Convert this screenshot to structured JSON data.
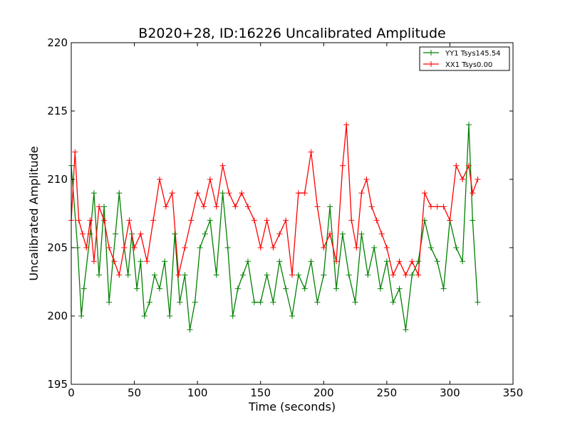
{
  "chart_data": {
    "type": "line",
    "title": "B2020+28, ID:16226 Uncalibrated Amplitude",
    "xlabel": "Time (seconds)",
    "ylabel": "Uncalibrated Amplitude",
    "xlim": [
      0,
      350
    ],
    "ylim": [
      195,
      220
    ],
    "xticks": [
      "0",
      "50",
      "100",
      "150",
      "200",
      "250",
      "300",
      "350"
    ],
    "yticks": [
      "195",
      "200",
      "205",
      "210",
      "215",
      "220"
    ],
    "grid": false,
    "legend": "top-right",
    "marker": "plus",
    "series": [
      {
        "name": "YY1 Tsys145.54",
        "color": "#008000",
        "x": [
          0,
          5,
          8,
          10,
          15,
          18,
          22,
          26,
          30,
          35,
          38,
          42,
          45,
          48,
          52,
          55,
          58,
          62,
          66,
          70,
          74,
          78,
          82,
          86,
          90,
          94,
          98,
          102,
          106,
          110,
          115,
          120,
          124,
          128,
          132,
          136,
          140,
          145,
          150,
          155,
          160,
          165,
          170,
          175,
          180,
          185,
          190,
          195,
          200,
          205,
          210,
          215,
          220,
          225,
          230,
          235,
          240,
          245,
          250,
          255,
          260,
          265,
          270,
          275,
          280,
          285,
          290,
          295,
          300,
          305,
          310,
          315,
          318,
          322
        ],
        "y": [
          211,
          205,
          200,
          202,
          206,
          209,
          203,
          208,
          201,
          206,
          209,
          205,
          203,
          206,
          202,
          204,
          200,
          201,
          203,
          202,
          204,
          200,
          206,
          201,
          203,
          199,
          201,
          205,
          206,
          207,
          203,
          209,
          205,
          200,
          202,
          203,
          204,
          201,
          201,
          203,
          201,
          204,
          202,
          200,
          203,
          202,
          204,
          201,
          203,
          208,
          202,
          206,
          203,
          201,
          206,
          203,
          205,
          202,
          204,
          201,
          202,
          199,
          203,
          204,
          207,
          205,
          204,
          202,
          207,
          205,
          204,
          214,
          207,
          201
        ]
      },
      {
        "name": "XX1 Tsys0.00",
        "color": "#ff0000",
        "x": [
          0,
          3,
          6,
          9,
          12,
          15,
          18,
          22,
          26,
          30,
          34,
          38,
          42,
          46,
          50,
          55,
          60,
          65,
          70,
          75,
          80,
          85,
          90,
          95,
          100,
          105,
          110,
          115,
          120,
          125,
          130,
          135,
          140,
          145,
          150,
          155,
          160,
          165,
          170,
          175,
          180,
          185,
          190,
          195,
          200,
          205,
          210,
          215,
          218,
          222,
          226,
          230,
          234,
          238,
          242,
          246,
          250,
          255,
          260,
          265,
          270,
          275,
          280,
          285,
          290,
          295,
          300,
          305,
          310,
          315,
          318,
          322
        ],
        "y": [
          207,
          212,
          207,
          206,
          205,
          207,
          204,
          208,
          207,
          205,
          204,
          203,
          205,
          207,
          205,
          206,
          204,
          207,
          210,
          208,
          209,
          203,
          205,
          207,
          209,
          208,
          210,
          208,
          211,
          209,
          208,
          209,
          208,
          207,
          205,
          207,
          205,
          206,
          207,
          203,
          209,
          209,
          212,
          208,
          205,
          206,
          204,
          211,
          214,
          207,
          205,
          209,
          210,
          208,
          207,
          206,
          205,
          203,
          204,
          203,
          204,
          203,
          209,
          208,
          208,
          208,
          207,
          211,
          210,
          211,
          209,
          210
        ]
      }
    ]
  }
}
